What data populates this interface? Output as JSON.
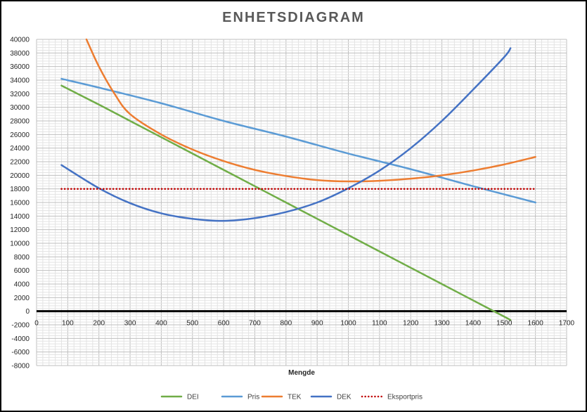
{
  "chart_data": {
    "type": "line",
    "title": "ENHETSDIAGRAM",
    "xlabel": "Mengde",
    "ylabel": "",
    "xlim": [
      0,
      1700
    ],
    "ylim": [
      -8000,
      40000
    ],
    "x_ticks": [
      0,
      100,
      200,
      300,
      400,
      500,
      600,
      700,
      800,
      900,
      1000,
      1100,
      1200,
      1300,
      1400,
      1500,
      1600,
      1700
    ],
    "y_ticks": [
      -8000,
      -6000,
      -4000,
      -2000,
      0,
      2000,
      4000,
      6000,
      8000,
      10000,
      12000,
      14000,
      16000,
      18000,
      20000,
      22000,
      24000,
      26000,
      28000,
      30000,
      32000,
      34000,
      36000,
      38000,
      40000
    ],
    "grid": true,
    "legend_position": "bottom",
    "series": [
      {
        "name": "DEI",
        "color": "#70AD47",
        "style": "solid",
        "x": [
          80,
          200,
          300,
          400,
          500,
          600,
          700,
          800,
          900,
          1000,
          1100,
          1200,
          1300,
          1400,
          1500,
          1520
        ],
        "y": [
          33200,
          30400,
          28000,
          25600,
          23200,
          20800,
          18400,
          16000,
          13600,
          11200,
          8800,
          6400,
          4000,
          1600,
          -800,
          -1300
        ]
      },
      {
        "name": "Pris",
        "color": "#5B9BD5",
        "style": "solid",
        "x": [
          80,
          200,
          400,
          600,
          800,
          1000,
          1200,
          1400,
          1600
        ],
        "y": [
          34200,
          32900,
          30600,
          28000,
          25700,
          23200,
          20900,
          18400,
          16000
        ]
      },
      {
        "name": "TEK",
        "color": "#ED7D31",
        "style": "solid",
        "x": [
          160,
          200,
          250,
          300,
          400,
          500,
          600,
          700,
          800,
          900,
          1000,
          1100,
          1200,
          1300,
          1400,
          1500,
          1600
        ],
        "y": [
          40000,
          36000,
          32000,
          29000,
          26000,
          23800,
          22100,
          20800,
          19900,
          19300,
          19100,
          19200,
          19500,
          20000,
          20700,
          21600,
          22700
        ]
      },
      {
        "name": "DEK",
        "color": "#4472C4",
        "style": "solid",
        "x": [
          80,
          200,
          300,
          400,
          500,
          600,
          700,
          800,
          900,
          1000,
          1100,
          1200,
          1300,
          1400,
          1500,
          1520
        ],
        "y": [
          21500,
          18100,
          15900,
          14400,
          13600,
          13300,
          13700,
          14600,
          16000,
          18100,
          20700,
          24000,
          28000,
          32600,
          37400,
          38700
        ]
      },
      {
        "name": "Eksportpris",
        "color": "#C00000",
        "style": "dotted",
        "x": [
          80,
          1600
        ],
        "y": [
          18000,
          18000
        ]
      }
    ]
  }
}
